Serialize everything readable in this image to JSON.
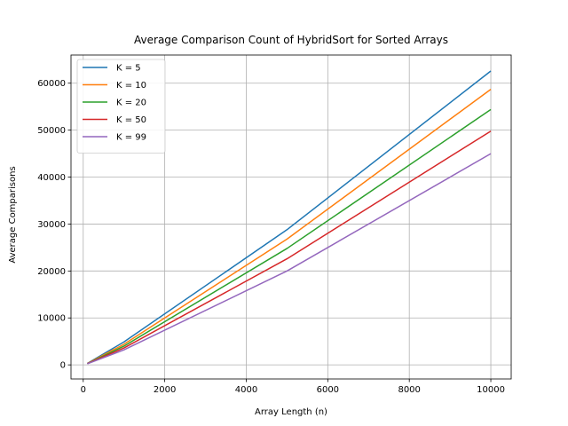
{
  "chart_data": {
    "type": "line",
    "title": "Average Comparison Count of HybridSort for Sorted Arrays",
    "xlabel": "Array Length (n)",
    "ylabel": "Average Comparisons",
    "xlim": [
      -300,
      10500
    ],
    "ylim": [
      -3000,
      66000
    ],
    "x_ticks": [
      0,
      2000,
      4000,
      6000,
      8000,
      10000
    ],
    "y_ticks": [
      0,
      10000,
      20000,
      30000,
      40000,
      50000,
      60000
    ],
    "x_tick_labels": [
      "0",
      "2000",
      "4000",
      "6000",
      "8000",
      "10000"
    ],
    "y_tick_labels": [
      "0",
      "10000",
      "20000",
      "30000",
      "40000",
      "50000",
      "60000"
    ],
    "grid": true,
    "legend_position": "top-left",
    "x": [
      100,
      1000,
      5000,
      10000
    ],
    "series": [
      {
        "name": "K = 5",
        "color": "#1f77b4",
        "values": [
          300,
          4900,
          28800,
          62600
        ]
      },
      {
        "name": "K = 10",
        "color": "#ff7f0e",
        "values": [
          280,
          4400,
          26800,
          58700
        ]
      },
      {
        "name": "K = 20",
        "color": "#2ca02c",
        "values": [
          260,
          4000,
          24800,
          54400
        ]
      },
      {
        "name": "K = 50",
        "color": "#d62728",
        "values": [
          240,
          3600,
          22600,
          49800
        ]
      },
      {
        "name": "K = 99",
        "color": "#9467bd",
        "values": [
          220,
          3200,
          20000,
          45000
        ]
      }
    ]
  }
}
